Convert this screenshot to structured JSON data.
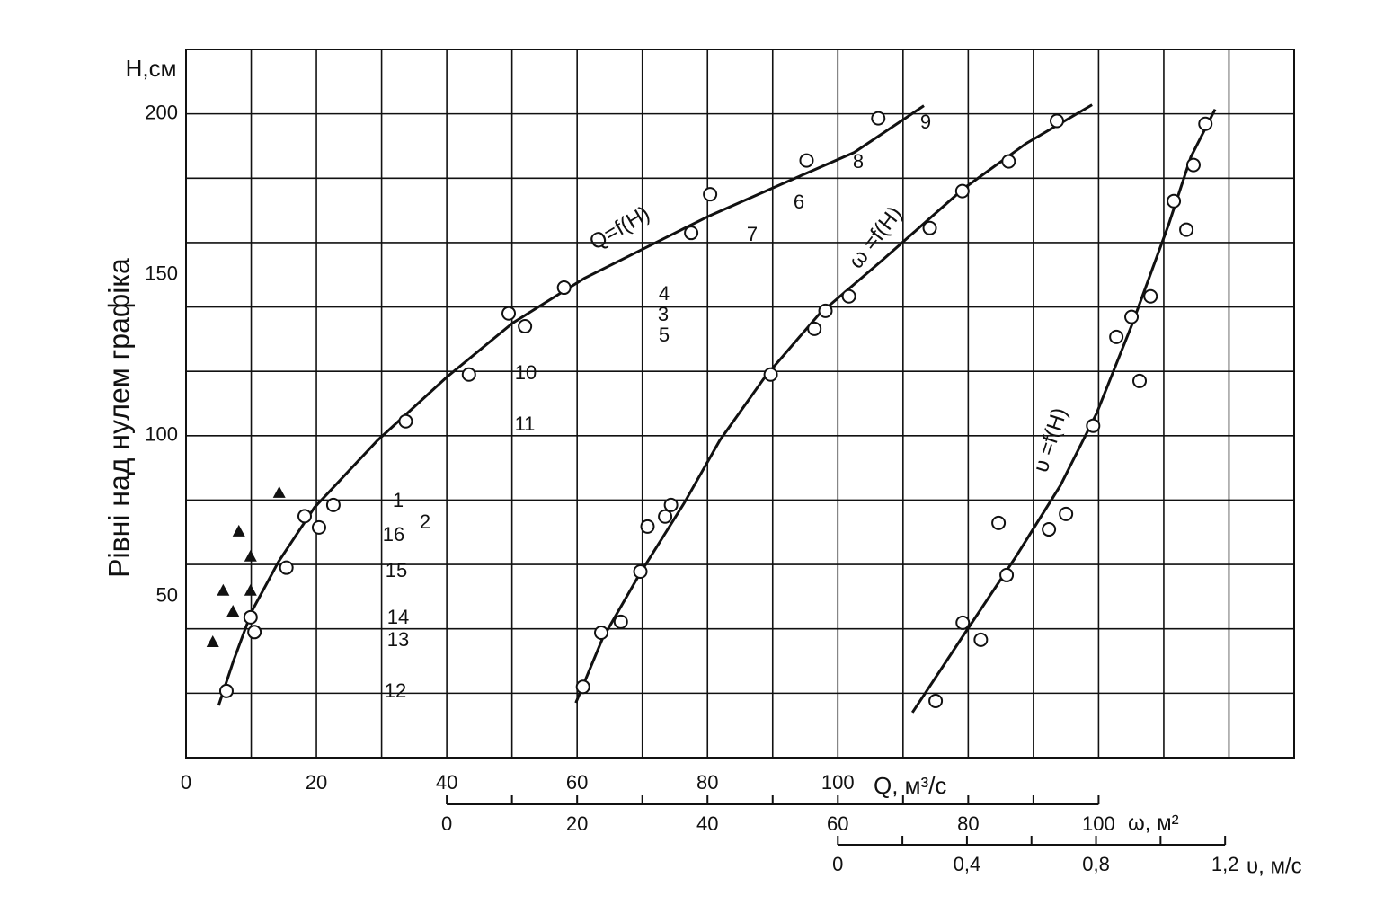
{
  "chart_data": {
    "type": "scatter",
    "ylabel": "Рівні над нулем графіка",
    "yunit": "H,см",
    "xlabel": "Q, м³/с",
    "x2label": "ω, м²",
    "x3label": "υ, м/с",
    "ylim": [
      0,
      220
    ],
    "yticks": [
      50,
      100,
      150,
      200
    ],
    "ygrid": [
      20,
      40,
      60,
      80,
      100,
      120,
      140,
      160,
      180,
      200
    ],
    "xlim": [
      0,
      170
    ],
    "xticks": [
      0,
      20,
      40,
      60,
      80,
      100
    ],
    "xgrid": [
      10,
      20,
      30,
      40,
      50,
      60,
      70,
      80,
      90,
      100,
      110,
      120,
      130,
      140,
      150,
      160
    ],
    "x2lim": [
      -40,
      130
    ],
    "x2ticks": [
      0,
      20,
      40,
      60,
      80,
      100
    ],
    "x2minor": [
      10,
      30,
      50,
      70,
      90
    ],
    "x3lim": [
      -2.02,
      1.414
    ],
    "x3ticks": [
      0,
      {
        "value": 0.4,
        "label": "0,4"
      },
      {
        "value": 0.8,
        "label": "0,8"
      },
      {
        "value": 1.2,
        "label": "1,2"
      }
    ],
    "x3minor": [
      0.2,
      0.6,
      1.0
    ],
    "series": [
      {
        "label": "Q=f(H)",
        "axis": "x",
        "color": "#111",
        "curve": {
          "x": [
            5,
            7.3,
            10.1,
            14.2,
            19.7,
            29.4,
            40,
            50.1,
            61.1,
            70.8,
            80.4,
            91.4,
            102.5,
            113.2
          ],
          "y": [
            16.2,
            30.2,
            45.5,
            60.9,
            77.7,
            98.6,
            118.2,
            135,
            148.9,
            158.7,
            168.4,
            178.2,
            188,
            202.5
          ]
        },
        "points": {
          "x": [
            6.2,
            9.9,
            10.5,
            15.4,
            18.2,
            20.4,
            22.6,
            33.7,
            43.4,
            49.5,
            52,
            58,
            77.5,
            80.4,
            95.2,
            106.2
          ],
          "y": [
            20.7,
            43.6,
            39,
            59,
            75,
            71.5,
            78.5,
            104.5,
            119,
            138,
            134,
            146,
            163,
            175,
            185.5,
            198.6
          ]
        }
      },
      {
        "label": "ω =f(H)",
        "axis": "x2",
        "color": "#111",
        "curve": {
          "x": [
            19.8,
            23.9,
            29.5,
            36.4,
            41.9,
            48.8,
            57.1,
            66.8,
            79.3,
            88.9,
            99
          ],
          "y": [
            17,
            37,
            56.7,
            79,
            98.6,
            118.2,
            137.7,
            154.5,
            176.8,
            190.8,
            202.8
          ]
        },
        "points": {
          "x": [
            20.9,
            23.7,
            26.7,
            29.7,
            30.8,
            33.5,
            34.4,
            49.7,
            56.4,
            58.1,
            61.7,
            74.1,
            79.1,
            86.2,
            93.6
          ],
          "y": [
            22,
            38.8,
            42.2,
            57.8,
            71.8,
            74.9,
            78.5,
            119,
            133.2,
            138.8,
            143.3,
            164.5,
            176,
            185.2,
            197.8
          ]
        }
      },
      {
        "label": "υ =f(H)",
        "axis": "x3",
        "color": "#111",
        "curve": {
          "x": [
            0.231,
            0.384,
            0.551,
            0.69,
            0.802,
            0.913,
            1.025,
            1.094,
            1.169
          ],
          "y": [
            14,
            37.2,
            62.3,
            84.6,
            107,
            134.9,
            165.6,
            186.6,
            201.4
          ]
        },
        "points": {
          "x": [
            0.303,
            0.387,
            0.443,
            0.498,
            0.523,
            0.654,
            0.707,
            0.791,
            0.863,
            0.91,
            0.935,
            0.969,
            1.041,
            1.08,
            1.102,
            1.139
          ],
          "y": [
            17.6,
            41.9,
            36.6,
            72.9,
            56.7,
            70.9,
            75.7,
            103.1,
            130.7,
            136.9,
            117,
            143.3,
            172.9,
            164,
            184.1,
            196.9
          ]
        }
      }
    ],
    "triangles": {
      "axis": "x",
      "x": [
        14.3,
        8.1,
        9.9,
        5.7,
        9.9,
        7.2,
        4.1
      ],
      "y": [
        82.4,
        70.4,
        62.6,
        52,
        52,
        45.5,
        36
      ]
    },
    "annotations": [
      "1",
      "2",
      "16",
      "15",
      "14",
      "13",
      "12",
      "11",
      "10",
      "5",
      "3",
      "4",
      "7",
      "6",
      "8",
      "9"
    ]
  }
}
